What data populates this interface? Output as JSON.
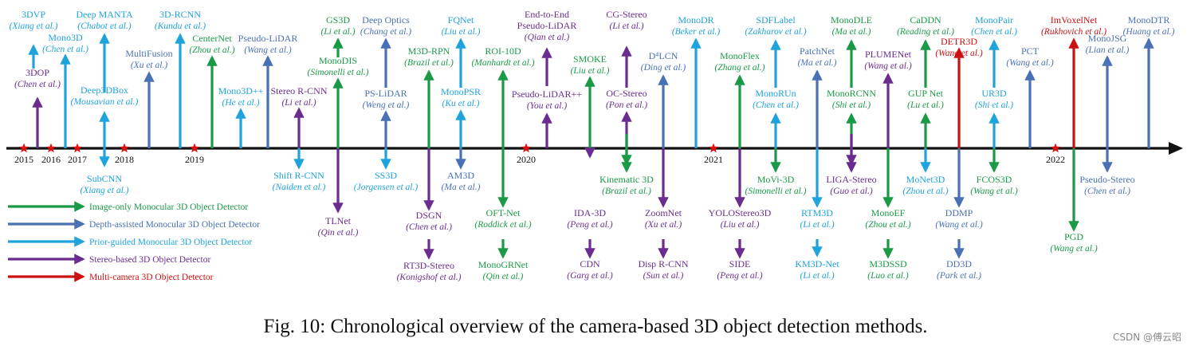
{
  "caption": "Fig. 10: Chronological overview of the camera-based 3D object detection methods.",
  "watermark": "CSDN @傅云昭",
  "colors": {
    "image_only": "#1a9a47",
    "depth": "#4a70b5",
    "prior": "#1fa3dc",
    "stereo": "#6a2d8f",
    "multi": "#cc1111",
    "axis": "#111111",
    "star": "#e01010"
  },
  "legend": [
    {
      "label": "Image-only Monocular 3D Object Detector",
      "cat": "image_only"
    },
    {
      "label": "Depth-assisted Monocular 3D Object Detector",
      "cat": "depth"
    },
    {
      "label": "Prior-guided Monocular 3D Object Detector",
      "cat": "prior"
    },
    {
      "label": "Stereo-based 3D Object Detector",
      "cat": "stereo"
    },
    {
      "label": "Multi-camera 3D Object Detector",
      "cat": "multi"
    }
  ],
  "years": [
    "2015",
    "2016",
    "2017",
    "2018",
    "2019",
    "2020",
    "2021",
    "2022"
  ],
  "methods": [
    {
      "name": "3DVP",
      "author": "Xiang et al.",
      "cat": "prior"
    },
    {
      "name": "3DOP",
      "author": "Chen et al.",
      "cat": "stereo"
    },
    {
      "name": "Mono3D",
      "author": "Chen et al.",
      "cat": "prior"
    },
    {
      "name": "Deep MANTA",
      "author": "Chabot et al.",
      "cat": "prior"
    },
    {
      "name": "Deep3DBox",
      "author": "Mousavian et al.",
      "cat": "prior"
    },
    {
      "name": "SubCNN",
      "author": "Xiang et al.",
      "cat": "prior"
    },
    {
      "name": "MultiFusion",
      "author": "Xu et al.",
      "cat": "depth"
    },
    {
      "name": "3D-RCNN",
      "author": "Kundu et al.",
      "cat": "prior"
    },
    {
      "name": "CenterNet",
      "author": "Zhou et al.",
      "cat": "image_only"
    },
    {
      "name": "Mono3D++",
      "author": "He et al.",
      "cat": "prior"
    },
    {
      "name": "Pseudo-LiDAR",
      "author": "Wang et al.",
      "cat": "depth"
    },
    {
      "name": "Stereo R-CNN",
      "author": "Li et al.",
      "cat": "stereo"
    },
    {
      "name": "Shift R-CNN",
      "author": "Naiden et al.",
      "cat": "prior"
    },
    {
      "name": "GS3D",
      "author": "Li et al.",
      "cat": "image_only"
    },
    {
      "name": "MonoDIS",
      "author": "Simonelli et al.",
      "cat": "image_only"
    },
    {
      "name": "TLNet",
      "author": "Qin et al.",
      "cat": "stereo"
    },
    {
      "name": "Deep Optics",
      "author": "Chang et al.",
      "cat": "depth"
    },
    {
      "name": "PS-LiDAR",
      "author": "Weng et al.",
      "cat": "depth"
    },
    {
      "name": "SS3D",
      "author": "Jorgensen et al.",
      "cat": "prior"
    },
    {
      "name": "M3D-RPN",
      "author": "Brazil et al.",
      "cat": "image_only"
    },
    {
      "name": "DSGN",
      "author": "Chen et al.",
      "cat": "stereo"
    },
    {
      "name": "RT3D-Stereo",
      "author": "Konigshof et al.",
      "cat": "stereo"
    },
    {
      "name": "FQNet",
      "author": "Liu et al.",
      "cat": "prior"
    },
    {
      "name": "MonoPSR",
      "author": "Ku et al.",
      "cat": "prior"
    },
    {
      "name": "AM3D",
      "author": "Ma et al.",
      "cat": "depth"
    },
    {
      "name": "ROI-10D",
      "author": "Manhardt et al.",
      "cat": "image_only"
    },
    {
      "name": "OFT-Net",
      "author": "Roddick et al.",
      "cat": "image_only"
    },
    {
      "name": "MonoGRNet",
      "author": "Qin et al.",
      "cat": "image_only"
    },
    {
      "name": "End-to-End Pseudo-LiDAR",
      "author": "Qian et al.",
      "cat": "stereo"
    },
    {
      "name": "Pseudo-LiDAR++",
      "author": "You et al.",
      "cat": "stereo"
    },
    {
      "name": "SMOKE",
      "author": "Liu et al.",
      "cat": "image_only"
    },
    {
      "name": "IDA-3D",
      "author": "Peng et al.",
      "cat": "stereo"
    },
    {
      "name": "CDN",
      "author": "Garg et al.",
      "cat": "stereo"
    },
    {
      "name": "CG-Stereo",
      "author": "Li et al.",
      "cat": "stereo"
    },
    {
      "name": "OC-Stereo",
      "author": "Pon et al.",
      "cat": "stereo"
    },
    {
      "name": "Kinematic 3D",
      "author": "Brazil et al.",
      "cat": "image_only"
    },
    {
      "name": "D⁴LCN",
      "author": "Ding et al.",
      "cat": "depth"
    },
    {
      "name": "ZoomNet",
      "author": "Xu et al.",
      "cat": "stereo"
    },
    {
      "name": "Disp R-CNN",
      "author": "Sun et al.",
      "cat": "stereo"
    },
    {
      "name": "MonoDR",
      "author": "Beker et al.",
      "cat": "prior"
    },
    {
      "name": "MonoFlex",
      "author": "Zhang et al.",
      "cat": "image_only"
    },
    {
      "name": "YOLOStereo3D",
      "author": "Liu et al.",
      "cat": "stereo"
    },
    {
      "name": "SIDE",
      "author": "Peng et al.",
      "cat": "stereo"
    },
    {
      "name": "SDFLabel",
      "author": "Zakharov et al.",
      "cat": "prior"
    },
    {
      "name": "MonoRUn",
      "author": "Chen et al.",
      "cat": "prior"
    },
    {
      "name": "MoVi-3D",
      "author": "Simonelli et al.",
      "cat": "image_only"
    },
    {
      "name": "PatchNet",
      "author": "Ma et al.",
      "cat": "depth"
    },
    {
      "name": "RTM3D",
      "author": "Li et al.",
      "cat": "prior"
    },
    {
      "name": "KM3D-Net",
      "author": "Li et al.",
      "cat": "prior"
    },
    {
      "name": "MonoDLE",
      "author": "Ma et al.",
      "cat": "image_only"
    },
    {
      "name": "MonoRCNN",
      "author": "Shi et al.",
      "cat": "image_only"
    },
    {
      "name": "LIGA-Stereo",
      "author": "Guo et al.",
      "cat": "stereo"
    },
    {
      "name": "PLUMENet",
      "author": "Wang et al.",
      "cat": "stereo"
    },
    {
      "name": "MonoEF",
      "author": "Zhou et al.",
      "cat": "image_only"
    },
    {
      "name": "M3DSSD",
      "author": "Luo et al.",
      "cat": "image_only"
    },
    {
      "name": "CaDDN",
      "author": "Reading et al.",
      "cat": "image_only"
    },
    {
      "name": "GUP Net",
      "author": "Lu et al.",
      "cat": "image_only"
    },
    {
      "name": "MoNet3D",
      "author": "Zhou et al.",
      "cat": "prior"
    },
    {
      "name": "DETR3D",
      "author": "Wang et al.",
      "cat": "multi"
    },
    {
      "name": "DDMP",
      "author": "Wang et al.",
      "cat": "depth"
    },
    {
      "name": "DD3D",
      "author": "Park et al.",
      "cat": "depth"
    },
    {
      "name": "MonoPair",
      "author": "Chen et al.",
      "cat": "prior"
    },
    {
      "name": "UR3D",
      "author": "Shi et al.",
      "cat": "prior"
    },
    {
      "name": "FCOS3D",
      "author": "Wang et al.",
      "cat": "image_only"
    },
    {
      "name": "PCT",
      "author": "Wang et al.",
      "cat": "depth"
    },
    {
      "name": "ImVoxelNet",
      "author": "Rukhovich et al.",
      "cat": "multi"
    },
    {
      "name": "PGD",
      "author": "Wang et al.",
      "cat": "image_only"
    },
    {
      "name": "MonoJSG",
      "author": "Lian et al.",
      "cat": "depth"
    },
    {
      "name": "Pseudo-Stereo",
      "author": "Chen et al.",
      "cat": "depth"
    },
    {
      "name": "MonoDTR",
      "author": "Huang et al.",
      "cat": "depth"
    }
  ]
}
